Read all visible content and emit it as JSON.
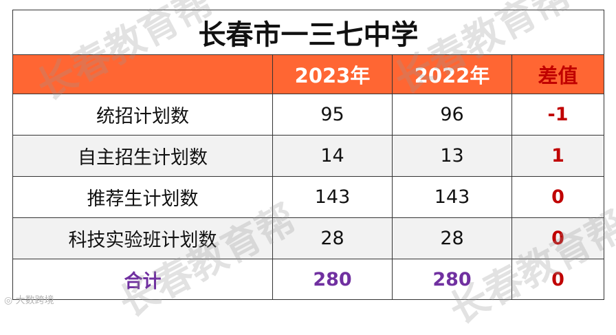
{
  "title": "长春市一三七中学",
  "header": {
    "col_label": "",
    "col_2023": "2023年",
    "col_2022": "2022年",
    "col_diff": "差值"
  },
  "rows": [
    {
      "label": "统招计划数",
      "y2023": "95",
      "y2022": "96",
      "diff": "-1"
    },
    {
      "label": "自主招生计划数",
      "y2023": "14",
      "y2022": "13",
      "diff": "1"
    },
    {
      "label": "推荐生计划数",
      "y2023": "143",
      "y2022": "143",
      "diff": "0"
    },
    {
      "label": "科技实验班计划数",
      "y2023": "28",
      "y2022": "28",
      "diff": "0"
    }
  ],
  "total": {
    "label": "合计",
    "y2023": "280",
    "y2022": "280",
    "diff": "0"
  },
  "watermark": "长春教育帮",
  "corner_logo": "大数跨境",
  "colors": {
    "header_bg": "#ff6633",
    "header_text": "#ffffff",
    "diff_text": "#c00000",
    "total_text": "#7030a0",
    "stripe_bg": "#f2f2f2"
  }
}
